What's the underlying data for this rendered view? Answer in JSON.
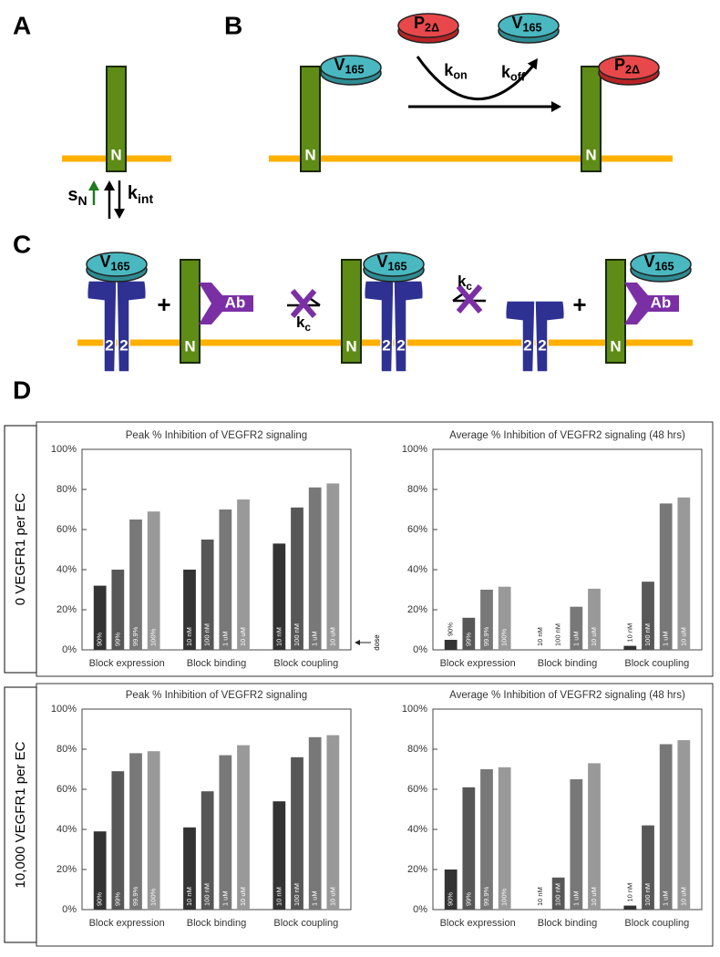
{
  "panels": [
    "A",
    "B",
    "C",
    "D"
  ],
  "diagram": {
    "labels": {
      "vegf": {
        "base": "V",
        "sub": "165"
      },
      "p2": {
        "base": "P",
        "sub": "2Δ"
      },
      "kon": {
        "base": "k",
        "sub": "on"
      },
      "koff": {
        "base": "k",
        "sub": "off"
      },
      "sn": {
        "base": "s",
        "sub": "N"
      },
      "kint": {
        "base": "k",
        "sub": "int"
      },
      "kc": {
        "base": "k",
        "sub": "c"
      },
      "n": "N",
      "two": "2",
      "ab": "Ab",
      "plus": "+"
    }
  },
  "rows": [
    "0 VEGFR1 per EC",
    "10,000 VEGFR1 per EC"
  ],
  "chart_data": [
    {
      "type": "bar",
      "title": "Peak % Inhibition of VEGFR2 signaling",
      "categories": [
        "Block expression",
        "Block binding",
        "Block coupling"
      ],
      "bar_labels": [
        [
          "90%",
          "99%",
          "99.9%",
          "100%"
        ],
        [
          "10 nM",
          "100 nM",
          "1 uM",
          "10 uM"
        ],
        [
          "10 nM",
          "100 nM",
          "1 uM",
          "10 uM"
        ]
      ],
      "series": [
        {
          "color": "#333333",
          "values": [
            32,
            40,
            53
          ]
        },
        {
          "color": "#575757",
          "values": [
            40,
            55,
            71
          ]
        },
        {
          "color": "#787878",
          "values": [
            65,
            70,
            81
          ]
        },
        {
          "color": "#999999",
          "values": [
            69,
            75,
            83
          ]
        }
      ],
      "ylim": [
        0,
        100
      ],
      "yticks": [
        {
          "value": 0,
          "label": "0%"
        },
        {
          "value": 20,
          "label": "20%"
        },
        {
          "value": 40,
          "label": "40%"
        },
        {
          "value": 60,
          "label": "60%"
        },
        {
          "value": 80,
          "label": "80%"
        },
        {
          "value": 100,
          "label": "100%"
        }
      ],
      "annotation": "dose"
    },
    {
      "type": "bar",
      "title": "Average % Inhibition of VEGFR2 signaling (48 hrs)",
      "categories": [
        "Block expression",
        "Block binding",
        "Block coupling"
      ],
      "bar_labels": [
        [
          "90%",
          "99%",
          "99.9%",
          "100%"
        ],
        [
          "10 nM",
          "100 nM",
          "1 uM",
          "10 uM"
        ],
        [
          "10 nM",
          "100 nM",
          "1 uM",
          "10 uM"
        ]
      ],
      "series": [
        {
          "color": "#333333",
          "values": [
            5,
            0,
            2
          ]
        },
        {
          "color": "#575757",
          "values": [
            16,
            0,
            34
          ]
        },
        {
          "color": "#787878",
          "values": [
            30,
            21.5,
            73
          ]
        },
        {
          "color": "#999999",
          "values": [
            31.5,
            30.5,
            76
          ]
        }
      ],
      "ylim": [
        0,
        100
      ],
      "yticks": [
        {
          "value": 0,
          "label": "0%"
        },
        {
          "value": 20,
          "label": "20%"
        },
        {
          "value": 40,
          "label": "40%"
        },
        {
          "value": 60,
          "label": "60%"
        },
        {
          "value": 80,
          "label": "80%"
        },
        {
          "value": 100,
          "label": "100%"
        }
      ]
    },
    {
      "type": "bar",
      "title": "Peak % Inhibition of VEGFR2 signaling",
      "categories": [
        "Block expression",
        "Block binding",
        "Block coupling"
      ],
      "bar_labels": [
        [
          "90%",
          "99%",
          "99.9%",
          "100%"
        ],
        [
          "10 nM",
          "100 nM",
          "1 uM",
          "10 uM"
        ],
        [
          "10 nM",
          "100 nM",
          "1 uM",
          "10 uM"
        ]
      ],
      "series": [
        {
          "color": "#333333",
          "values": [
            39,
            41,
            54
          ]
        },
        {
          "color": "#575757",
          "values": [
            69,
            59,
            76
          ]
        },
        {
          "color": "#787878",
          "values": [
            78,
            77,
            86
          ]
        },
        {
          "color": "#999999",
          "values": [
            79,
            82,
            87
          ]
        }
      ],
      "ylim": [
        0,
        100
      ],
      "yticks": [
        {
          "value": 0,
          "label": "0%"
        },
        {
          "value": 20,
          "label": "20%"
        },
        {
          "value": 40,
          "label": "40%"
        },
        {
          "value": 60,
          "label": "60%"
        },
        {
          "value": 80,
          "label": "80%"
        },
        {
          "value": 100,
          "label": "100%"
        }
      ]
    },
    {
      "type": "bar",
      "title": "Average % Inhibition of VEGFR2 signaling (48 hrs)",
      "categories": [
        "Block expression",
        "Block binding",
        "Block coupling"
      ],
      "bar_labels": [
        [
          "90%",
          "99%",
          "99.9%",
          "100%"
        ],
        [
          "10 nM",
          "100 nM",
          "1 uM",
          "10 uM"
        ],
        [
          "10 nM",
          "100 nM",
          "1 uM",
          "10 uM"
        ]
      ],
      "series": [
        {
          "color": "#333333",
          "values": [
            20,
            0,
            2
          ]
        },
        {
          "color": "#575757",
          "values": [
            61,
            16,
            42
          ]
        },
        {
          "color": "#787878",
          "values": [
            70,
            65,
            82.5
          ]
        },
        {
          "color": "#999999",
          "values": [
            71,
            73,
            84.5
          ]
        }
      ],
      "ylim": [
        0,
        100
      ],
      "yticks": [
        {
          "value": 0,
          "label": "0%"
        },
        {
          "value": 20,
          "label": "20%"
        },
        {
          "value": 40,
          "label": "40%"
        },
        {
          "value": 60,
          "label": "60%"
        },
        {
          "value": 80,
          "label": "80%"
        },
        {
          "value": 100,
          "label": "100%"
        }
      ]
    }
  ]
}
